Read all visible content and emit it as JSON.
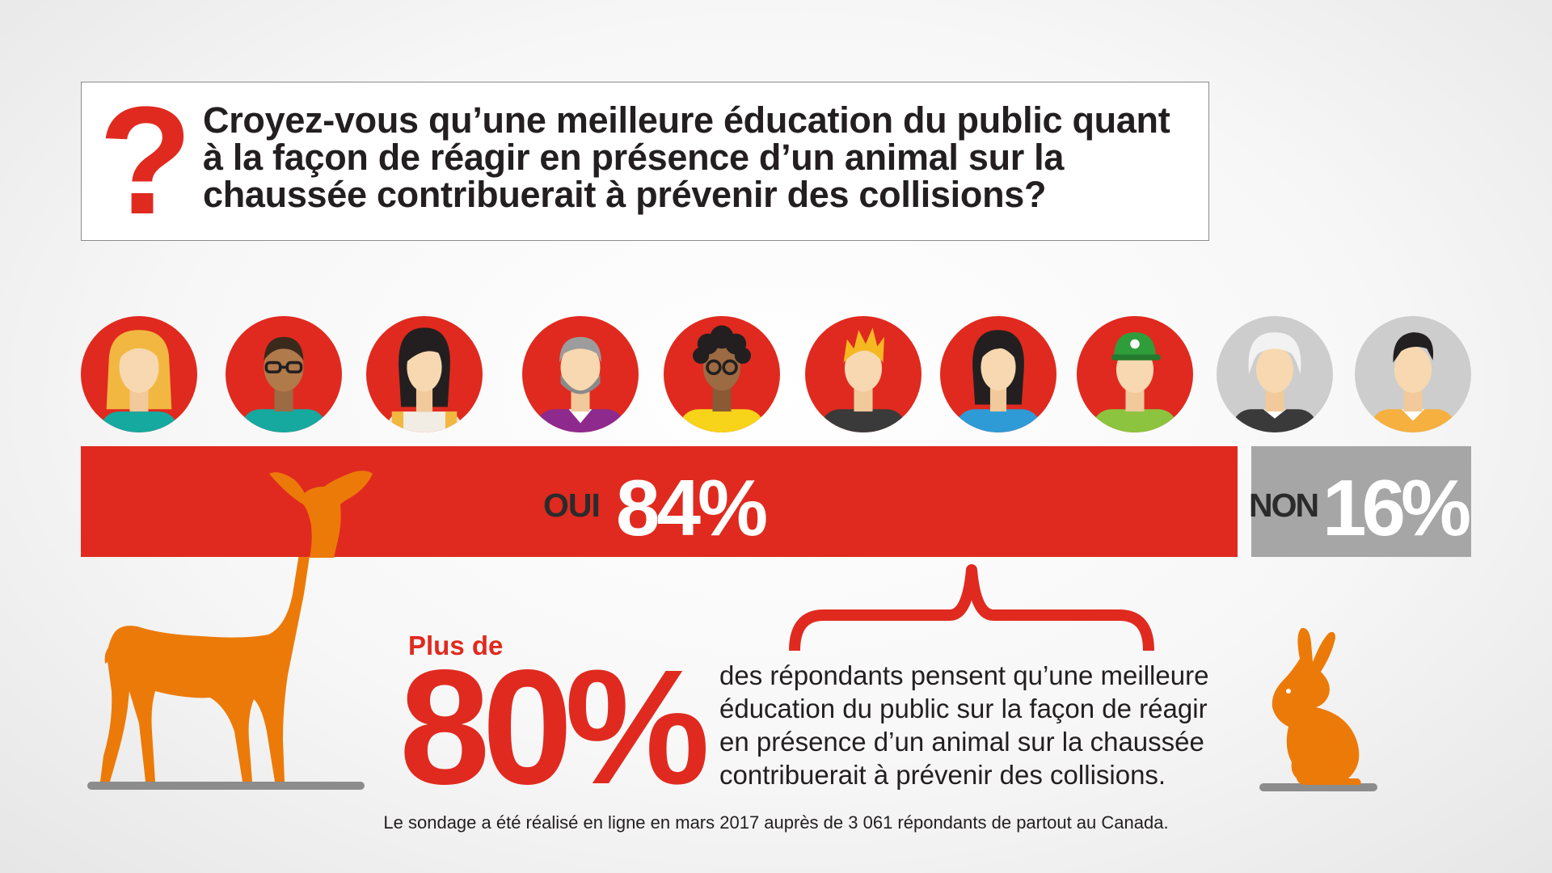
{
  "question": {
    "mark": "?",
    "text": "Croyez-vous qu’une meilleure éducation du public quant à la façon de réagir en présence d’un animal sur la chaussée contribuerait à prévenir des collisions?"
  },
  "chart_data": {
    "type": "bar",
    "categories": [
      "OUI",
      "NON"
    ],
    "values": [
      84,
      16
    ],
    "value_labels": [
      "84%",
      "16%"
    ],
    "colors": [
      "#e02a1f",
      "#a6a6a6"
    ],
    "avatars": {
      "total": 10,
      "yes_count": 8,
      "yes_circle_color": "#e02a1f",
      "no_circle_color": "#cdcdcd"
    }
  },
  "callout": {
    "prefix": "Plus de",
    "value": "80%",
    "text": "des répondants pensent qu’une meilleure éducation du public sur la façon de réagir en présence d’un animal sur la chaussée contribuerait à prévenir des collisions."
  },
  "footnote": "Le sondage a été réalisé en ligne en mars 2017 auprès de 3 061 répondants de partout au Canada.",
  "illustrations": {
    "deer": "deer-icon",
    "rabbit": "rabbit-icon",
    "accent_color": "#ec7a08",
    "ground_color": "#8c8c8c"
  }
}
